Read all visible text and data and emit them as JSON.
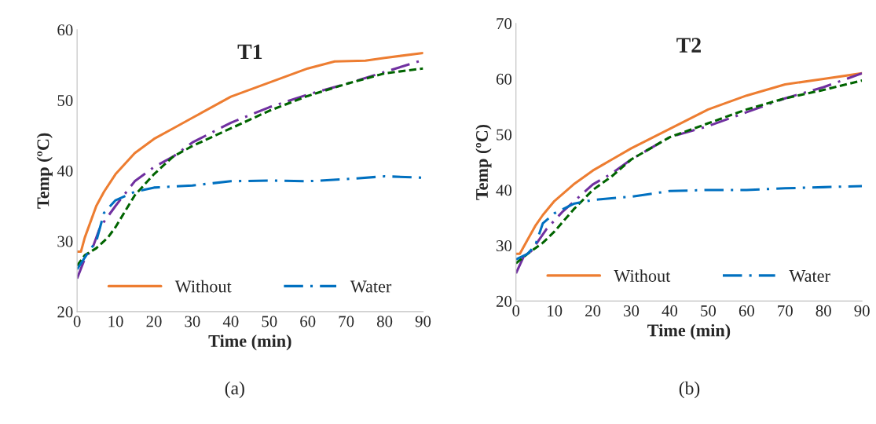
{
  "chart_data": [
    {
      "type": "line",
      "title": "T1",
      "xlabel": "Time (min)",
      "ylabel": "Temp (ºC)",
      "xlim": [
        0,
        90
      ],
      "xticks": [
        0,
        10,
        20,
        30,
        40,
        50,
        60,
        70,
        80,
        90
      ],
      "ylim": [
        20,
        60
      ],
      "yticks": [
        20,
        30,
        40,
        50,
        60
      ],
      "grid": false,
      "legend": "bottom",
      "annotations": [
        "(a)"
      ],
      "series": [
        {
          "name": "Without",
          "color": "#ed7d31",
          "line_style": "solid",
          "x": [
            0,
            1,
            2,
            5,
            7,
            10,
            15,
            20,
            25,
            30,
            40,
            50,
            60,
            67,
            75,
            80,
            90
          ],
          "values": [
            28.5,
            28.5,
            30.5,
            35,
            37,
            39.5,
            42.5,
            44.5,
            46,
            47.5,
            50.5,
            52.5,
            54.5,
            55.5,
            55.6,
            56,
            56.7
          ]
        },
        {
          "color": "#7030a0",
          "line_style": "dashdot",
          "x": [
            0,
            2,
            4,
            6,
            10,
            15,
            20,
            25,
            30,
            40,
            50,
            60,
            70,
            80,
            90
          ],
          "values": [
            24.7,
            27.5,
            29,
            32,
            35,
            38.5,
            40.5,
            42,
            44,
            46.8,
            49,
            50.8,
            52.3,
            54,
            55.7
          ]
        },
        {
          "color": "#006400",
          "line_style": "dashed",
          "x": [
            0,
            2,
            5,
            8,
            10,
            15,
            20,
            25,
            30,
            40,
            50,
            60,
            70,
            80,
            90
          ],
          "values": [
            26.5,
            28,
            29,
            30.5,
            32,
            36.5,
            39.5,
            42,
            43.5,
            46,
            48.5,
            50.6,
            52.3,
            53.8,
            54.5
          ]
        },
        {
          "name": "Water",
          "color": "#0070c0",
          "line_style": "dashdot",
          "x": [
            0,
            3,
            5,
            7,
            10,
            15,
            20,
            30,
            40,
            50,
            60,
            70,
            80,
            90
          ],
          "values": [
            26,
            28.5,
            30,
            34,
            35.8,
            37,
            37.6,
            37.9,
            38.5,
            38.6,
            38.5,
            38.8,
            39.2,
            39
          ]
        }
      ]
    },
    {
      "type": "line",
      "title": "T2",
      "xlabel": "Time (min)",
      "ylabel": "Temp (ºC)",
      "xlim": [
        0,
        90
      ],
      "xticks": [
        0,
        10,
        20,
        30,
        40,
        50,
        60,
        70,
        80,
        90
      ],
      "ylim": [
        20,
        70
      ],
      "yticks": [
        20,
        30,
        40,
        50,
        60,
        70
      ],
      "grid": false,
      "legend": "bottom",
      "annotations": [
        "(b)"
      ],
      "series": [
        {
          "name": "Without",
          "color": "#ed7d31",
          "line_style": "solid",
          "x": [
            0,
            1,
            3,
            5,
            7,
            10,
            15,
            20,
            25,
            30,
            40,
            50,
            60,
            70,
            80,
            90
          ],
          "values": [
            28.5,
            28.5,
            31,
            33.5,
            35.5,
            38,
            41,
            43.5,
            45.5,
            47.5,
            51,
            54.5,
            57,
            59,
            60,
            61
          ]
        },
        {
          "color": "#7030a0",
          "line_style": "dashdot",
          "x": [
            0,
            2,
            4,
            8,
            12,
            16,
            20,
            25,
            30,
            40,
            50,
            60,
            70,
            80,
            90
          ],
          "values": [
            25,
            28,
            29,
            33,
            36,
            38.5,
            41,
            43,
            45.5,
            49.5,
            51.5,
            54,
            56.5,
            58.5,
            61
          ]
        },
        {
          "color": "#006400",
          "line_style": "dashed",
          "x": [
            0,
            3,
            7,
            10,
            15,
            20,
            25,
            30,
            40,
            50,
            60,
            70,
            80,
            90
          ],
          "values": [
            26.8,
            28.5,
            30.5,
            32.5,
            36.5,
            40,
            42.5,
            45.5,
            49.5,
            52,
            54.5,
            56.5,
            58,
            59.7
          ]
        },
        {
          "name": "Water",
          "color": "#0070c0",
          "line_style": "dashdot",
          "x": [
            0,
            3,
            5,
            7,
            10,
            15,
            20,
            30,
            40,
            50,
            60,
            70,
            80,
            90
          ],
          "values": [
            27.5,
            28.5,
            30,
            34,
            35.8,
            37.5,
            38.2,
            38.8,
            39.8,
            40,
            40,
            40.3,
            40.5,
            40.7
          ]
        }
      ]
    }
  ]
}
